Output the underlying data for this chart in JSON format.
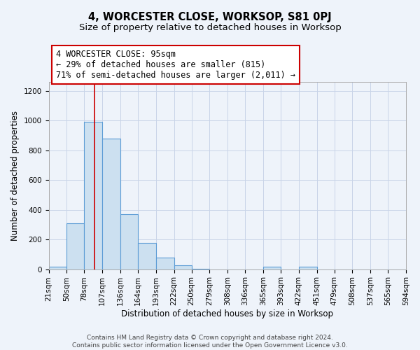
{
  "title": "4, WORCESTER CLOSE, WORKSOP, S81 0PJ",
  "subtitle": "Size of property relative to detached houses in Worksop",
  "xlabel": "Distribution of detached houses by size in Worksop",
  "ylabel": "Number of detached properties",
  "bin_edges": [
    21,
    50,
    78,
    107,
    136,
    164,
    193,
    222,
    250,
    279,
    308,
    336,
    365,
    393,
    422,
    451,
    479,
    508,
    537,
    565,
    594
  ],
  "bin_labels": [
    "21sqm",
    "50sqm",
    "78sqm",
    "107sqm",
    "136sqm",
    "164sqm",
    "193sqm",
    "222sqm",
    "250sqm",
    "279sqm",
    "308sqm",
    "336sqm",
    "365sqm",
    "393sqm",
    "422sqm",
    "451sqm",
    "479sqm",
    "508sqm",
    "537sqm",
    "565sqm",
    "594sqm"
  ],
  "bar_heights": [
    15,
    310,
    990,
    880,
    370,
    175,
    80,
    25,
    5,
    0,
    0,
    0,
    15,
    0,
    15,
    0,
    0,
    0,
    0,
    0
  ],
  "bar_color": "#cce0f0",
  "bar_edge_color": "#5b9bd5",
  "grid_color": "#c8d4e8",
  "background_color": "#eef3fa",
  "vline_x": 95,
  "vline_color": "#cc0000",
  "annotation_text": "4 WORCESTER CLOSE: 95sqm\n← 29% of detached houses are smaller (815)\n71% of semi-detached houses are larger (2,011) →",
  "annotation_box_color": "white",
  "annotation_box_edge_color": "#cc0000",
  "ylim": [
    0,
    1260
  ],
  "yticks": [
    0,
    200,
    400,
    600,
    800,
    1000,
    1200
  ],
  "footer_text": "Contains HM Land Registry data © Crown copyright and database right 2024.\nContains public sector information licensed under the Open Government Licence v3.0.",
  "title_fontsize": 10.5,
  "subtitle_fontsize": 9.5,
  "label_fontsize": 8.5,
  "tick_fontsize": 7.5,
  "annotation_fontsize": 8.5
}
